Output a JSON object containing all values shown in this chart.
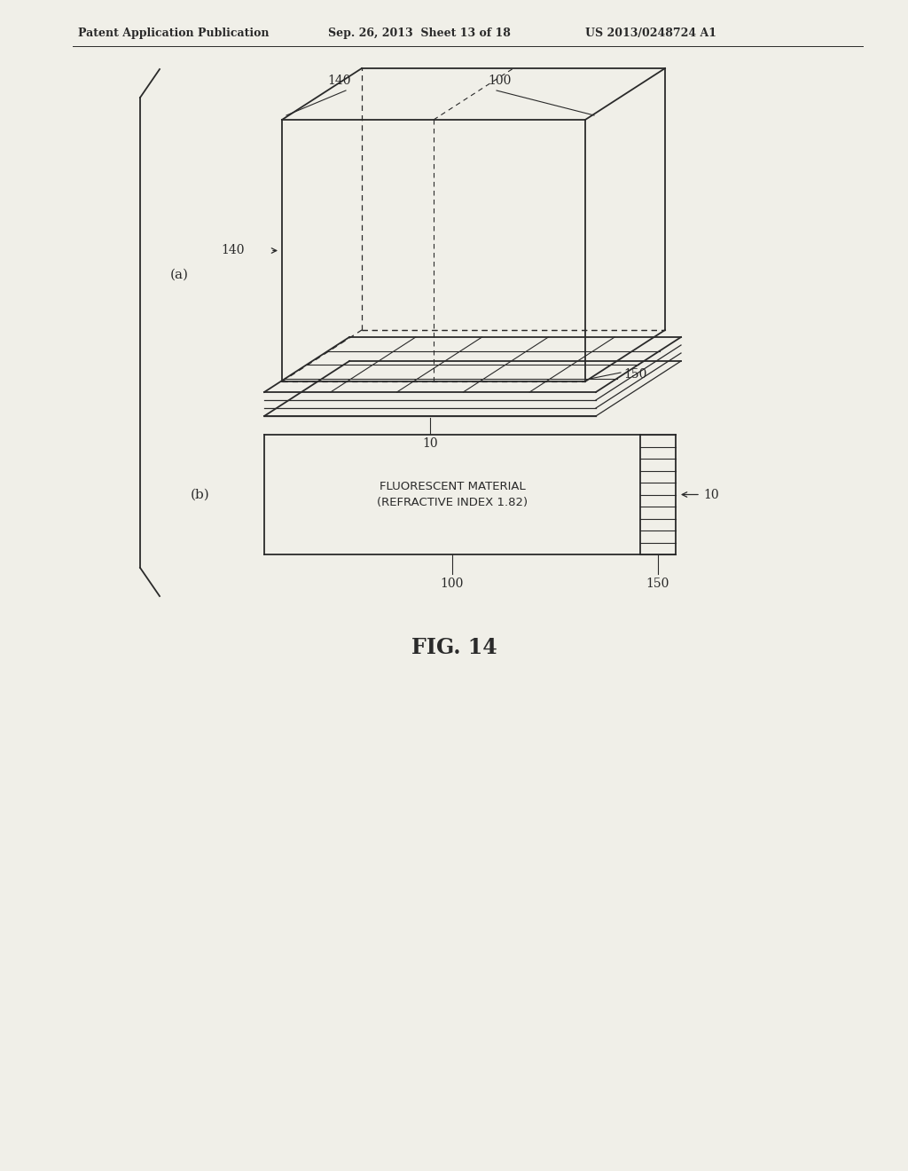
{
  "bg_color": "#f0efe8",
  "line_color": "#2a2a2a",
  "header_text": "Patent Application Publication",
  "header_date": "Sep. 26, 2013  Sheet 13 of 18",
  "header_patent": "US 2013/0248724 A1",
  "fig_label": "FIG. 14",
  "label_a": "(a)",
  "label_b": "(b)",
  "label_100_top": "100",
  "label_140_top": "140",
  "label_140_mid": "140",
  "label_150_a": "150",
  "label_10_a": "10",
  "label_100_b": "100",
  "label_150_b": "150",
  "label_10_b": "10",
  "fluorescent_text1": "FLUORESCENT MATERIAL",
  "fluorescent_text2": "(REFRACTIVE INDEX 1.82)"
}
